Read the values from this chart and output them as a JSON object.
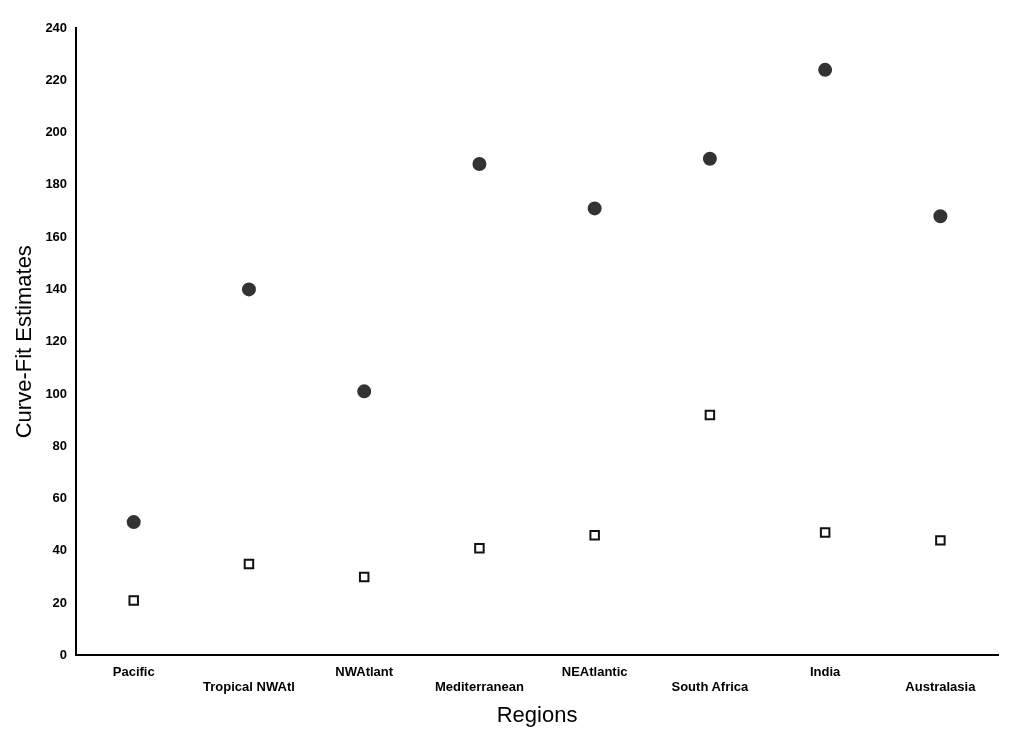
{
  "chart_data": {
    "type": "scatter",
    "xlabel": "Regions",
    "ylabel": "Curve-Fit Estimates",
    "categories": [
      "Pacific",
      "Tropical NWAtl",
      "NWAtlant",
      "Mediterranean",
      "NEAtlantic",
      "South Africa",
      "India",
      "Australasia"
    ],
    "series": [
      {
        "color": "#333333",
        "marker": "circle",
        "values": [
          51,
          140,
          101,
          188,
          171,
          190,
          224,
          168
        ]
      },
      {
        "color": "#111111",
        "marker": "square",
        "values": [
          21,
          35,
          30,
          41,
          46,
          92,
          47,
          44
        ]
      }
    ],
    "ylim": [
      0,
      240
    ],
    "yticks": [
      0,
      20,
      40,
      60,
      80,
      100,
      120,
      140,
      160,
      180,
      200,
      220,
      240
    ],
    "grid": false,
    "legend": false
  }
}
